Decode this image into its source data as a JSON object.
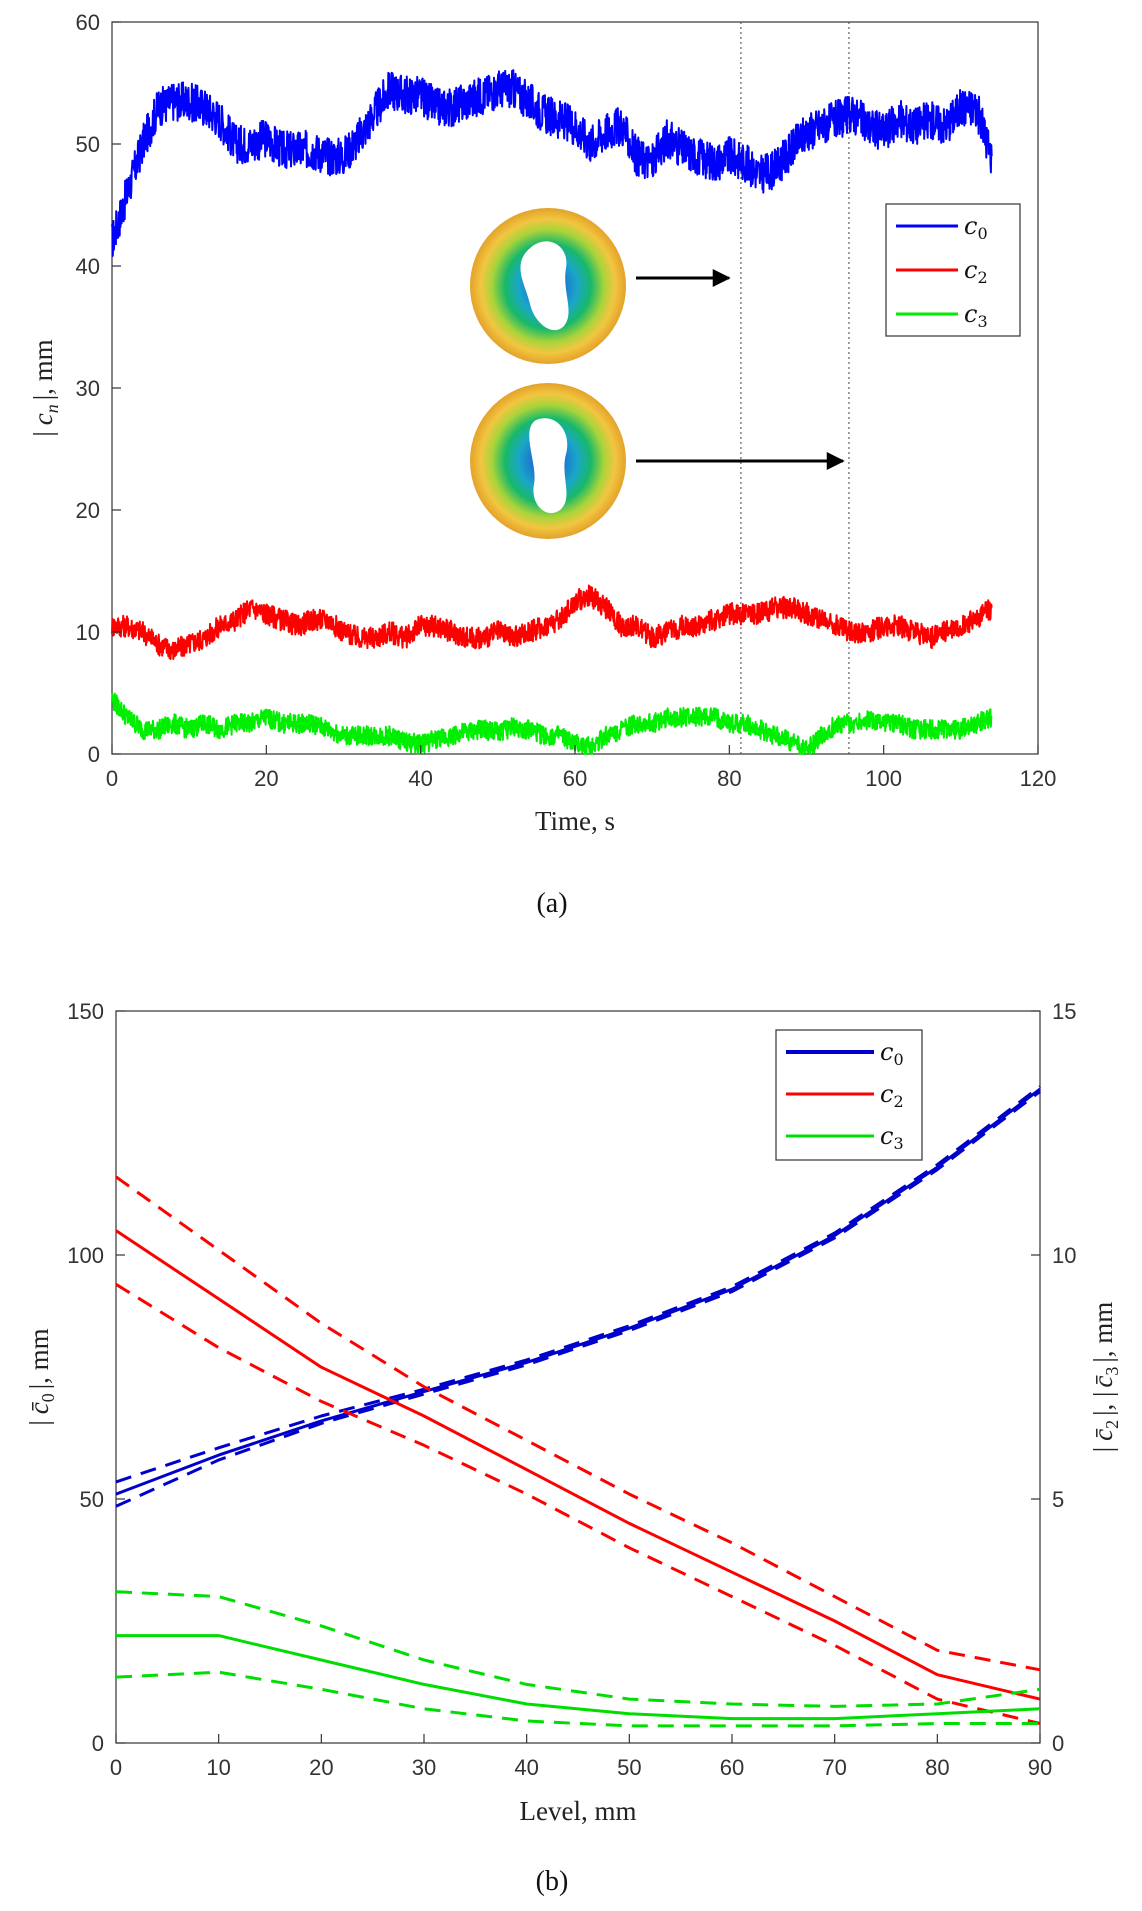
{
  "chart_data": [
    {
      "type": "line",
      "panel": "a",
      "caption": "(a)",
      "xlabel": "Time, s",
      "ylabel": "| c_n |, mm",
      "ylabel_main": "|",
      "ylabel_sym": "c",
      "ylabel_sub": "n",
      "ylabel_tail": "|, mm",
      "xlim": [
        0,
        120
      ],
      "ylim": [
        0,
        60
      ],
      "xticks": [
        "0",
        "20",
        "40",
        "60",
        "80",
        "100",
        "120"
      ],
      "yticks": [
        "0",
        "10",
        "20",
        "30",
        "40",
        "50",
        "60"
      ],
      "xtick_values": [
        0,
        20,
        40,
        60,
        80,
        100,
        120
      ],
      "ytick_values": [
        0,
        10,
        20,
        30,
        40,
        50,
        60
      ],
      "grid": false,
      "legend_position": "right",
      "legend": [
        {
          "sym": "c",
          "sub": "0",
          "color": "#0000ff"
        },
        {
          "sym": "c",
          "sub": "2",
          "color": "#ff0000"
        },
        {
          "sym": "c",
          "sub": "3",
          "color": "#00ee00"
        }
      ],
      "vertical_markers": [
        81.5,
        95.5
      ],
      "arrow_targets": [
        81.5,
        95.5
      ],
      "series": [
        {
          "name": "c0",
          "color": "#0000ff",
          "x": [
            0,
            2,
            4,
            6,
            8,
            10,
            12,
            14,
            16,
            18,
            20,
            22,
            24,
            26,
            28,
            30,
            32,
            34,
            36,
            38,
            40,
            42,
            44,
            46,
            48,
            50,
            52,
            54,
            56,
            58,
            60,
            62,
            64,
            66,
            68,
            70,
            72,
            74,
            76,
            78,
            80,
            82,
            84,
            86,
            88,
            90,
            92,
            94,
            96,
            98,
            100,
            102,
            104,
            106,
            108,
            110,
            112,
            114
          ],
          "y": [
            42,
            46,
            50,
            53,
            53.5,
            53.5,
            53,
            52,
            50,
            50,
            50.5,
            49.5,
            49.5,
            49.5,
            49,
            49,
            50.5,
            52.5,
            54.5,
            54,
            54,
            53,
            53,
            53.5,
            54,
            54.5,
            54.5,
            53.5,
            52.5,
            52,
            51.5,
            50,
            51,
            51.5,
            49,
            48.5,
            50.5,
            49.5,
            49,
            48.5,
            49,
            48.5,
            47.5,
            48,
            49.5,
            51,
            51.5,
            52,
            52.5,
            51.5,
            51,
            52,
            51.5,
            52,
            51.5,
            53,
            53,
            49
          ]
        },
        {
          "name": "c2",
          "color": "#ff0000",
          "x": [
            0,
            2,
            4,
            6,
            8,
            10,
            12,
            14,
            16,
            18,
            20,
            22,
            24,
            26,
            28,
            30,
            32,
            34,
            36,
            38,
            40,
            42,
            44,
            46,
            48,
            50,
            52,
            54,
            56,
            58,
            60,
            62,
            64,
            66,
            68,
            70,
            72,
            74,
            76,
            78,
            80,
            82,
            84,
            86,
            88,
            90,
            92,
            94,
            96,
            98,
            100,
            102,
            104,
            106,
            108,
            110,
            112,
            114
          ],
          "y": [
            10.5,
            10.5,
            10,
            9,
            8.5,
            9,
            9.5,
            10.5,
            11,
            12,
            11.5,
            11,
            10.5,
            11,
            11,
            10,
            9.5,
            9.5,
            10,
            9.5,
            10.5,
            10.5,
            10,
            9.5,
            9.5,
            10,
            9.5,
            10,
            10.5,
            11,
            12.5,
            13,
            12,
            10.5,
            10.5,
            9.5,
            10,
            10.5,
            10.5,
            11,
            11.5,
            11.5,
            11.5,
            12,
            12,
            11.5,
            11,
            10.5,
            10,
            10,
            10.5,
            10.5,
            10,
            9.5,
            10,
            10.5,
            11,
            12
          ]
        },
        {
          "name": "c3",
          "color": "#00ee00",
          "x": [
            0,
            2,
            4,
            6,
            8,
            10,
            12,
            14,
            16,
            18,
            20,
            22,
            24,
            26,
            28,
            30,
            32,
            34,
            36,
            38,
            40,
            42,
            44,
            46,
            48,
            50,
            52,
            54,
            56,
            58,
            60,
            62,
            64,
            66,
            68,
            70,
            72,
            74,
            76,
            78,
            80,
            82,
            84,
            86,
            88,
            90,
            92,
            94,
            96,
            98,
            100,
            102,
            104,
            106,
            108,
            110,
            112,
            114
          ],
          "y": [
            4.5,
            3,
            2,
            2,
            2.5,
            2,
            2.5,
            2,
            2.5,
            2.5,
            3,
            2.5,
            2.5,
            2.5,
            2,
            1.5,
            1.5,
            1.5,
            1.5,
            1,
            0.8,
            1.2,
            1.5,
            1.8,
            2,
            1.8,
            2.2,
            2,
            1.5,
            1.5,
            0.8,
            0.6,
            1.5,
            2,
            2.5,
            2.5,
            3,
            3,
            3,
            3,
            2.5,
            2.5,
            2,
            1.5,
            1,
            0.3,
            1.5,
            2.5,
            2.5,
            2.8,
            2.5,
            2.5,
            2,
            2,
            2,
            2,
            2.5,
            3
          ]
        }
      ]
    },
    {
      "type": "line",
      "panel": "b",
      "caption": "(b)",
      "xlabel": "Level, mm",
      "ylabel_left": "| c̄0 |, mm",
      "ylabel_left_main": "|",
      "ylabel_left_sym": "c̄",
      "ylabel_left_sub": "0",
      "ylabel_left_tail": "|, mm",
      "ylabel_right": "| c̄2 |, | c̄3 |, mm",
      "ylabel_right_a": "|",
      "ylabel_right_sym1": "c̄",
      "ylabel_right_sub1": "2",
      "ylabel_right_mid": "|, |",
      "ylabel_right_sym2": "c̄",
      "ylabel_right_sub2": "3",
      "ylabel_right_tail": "|, mm",
      "xlim": [
        0,
        90
      ],
      "ylim_left": [
        0,
        150
      ],
      "ylim_right": [
        0,
        15
      ],
      "xticks": [
        "0",
        "10",
        "20",
        "30",
        "40",
        "50",
        "60",
        "70",
        "80",
        "90"
      ],
      "yticks_left": [
        "0",
        "50",
        "100",
        "150"
      ],
      "yticks_right": [
        "0",
        "5",
        "10",
        "15"
      ],
      "xtick_values": [
        0,
        10,
        20,
        30,
        40,
        50,
        60,
        70,
        80,
        90
      ],
      "ytick_left_values": [
        0,
        50,
        100,
        150
      ],
      "ytick_right_values": [
        0,
        5,
        10,
        15
      ],
      "grid": false,
      "legend_position": "top-right",
      "legend": [
        {
          "sym": "c",
          "sub": "0",
          "color": "#0000cc"
        },
        {
          "sym": "c",
          "sub": "2",
          "color": "#ff0000"
        },
        {
          "sym": "c",
          "sub": "3",
          "color": "#00dd00"
        }
      ],
      "x": [
        0,
        10,
        20,
        30,
        40,
        50,
        60,
        70,
        80,
        90
      ],
      "series": [
        {
          "name": "c0 mean",
          "axis": "left",
          "color": "#0000cc",
          "style": "solid",
          "y": [
            51,
            59,
            66,
            72,
            78,
            85,
            93,
            104,
            118,
            134
          ]
        },
        {
          "name": "c0 upper",
          "axis": "left",
          "color": "#0000cc",
          "style": "dashed",
          "y": [
            53.5,
            60.5,
            67,
            72.5,
            78.5,
            85.5,
            93.5,
            104.5,
            118.5,
            134.5
          ]
        },
        {
          "name": "c0 lower",
          "axis": "left",
          "color": "#0000cc",
          "style": "dashed",
          "y": [
            48.5,
            58,
            65.5,
            71.5,
            77.5,
            84.5,
            92.5,
            103.5,
            117.5,
            133.5
          ]
        },
        {
          "name": "c2 mean",
          "axis": "right",
          "color": "#ff0000",
          "style": "solid",
          "y": [
            10.5,
            9.1,
            7.7,
            6.7,
            5.6,
            4.5,
            3.5,
            2.5,
            1.4,
            0.9
          ]
        },
        {
          "name": "c2 upper",
          "axis": "right",
          "color": "#ff0000",
          "style": "dashed",
          "y": [
            11.6,
            10.1,
            8.6,
            7.3,
            6.2,
            5.1,
            4.1,
            3.0,
            1.9,
            1.5
          ]
        },
        {
          "name": "c2 lower",
          "axis": "right",
          "color": "#ff0000",
          "style": "dashed",
          "y": [
            9.4,
            8.1,
            7.0,
            6.1,
            5.1,
            4.0,
            3.0,
            2.0,
            0.9,
            0.4
          ]
        },
        {
          "name": "c3 mean",
          "axis": "right",
          "color": "#00dd00",
          "style": "solid",
          "y": [
            2.2,
            2.2,
            1.7,
            1.2,
            0.8,
            0.6,
            0.5,
            0.5,
            0.6,
            0.7
          ]
        },
        {
          "name": "c3 upper",
          "axis": "right",
          "color": "#00dd00",
          "style": "dashed",
          "y": [
            3.1,
            3.0,
            2.4,
            1.7,
            1.2,
            0.9,
            0.8,
            0.75,
            0.8,
            1.1
          ]
        },
        {
          "name": "c3 lower",
          "axis": "right",
          "color": "#00dd00",
          "style": "dashed",
          "y": [
            1.35,
            1.45,
            1.1,
            0.7,
            0.45,
            0.35,
            0.35,
            0.35,
            0.4,
            0.4
          ]
        }
      ]
    }
  ]
}
